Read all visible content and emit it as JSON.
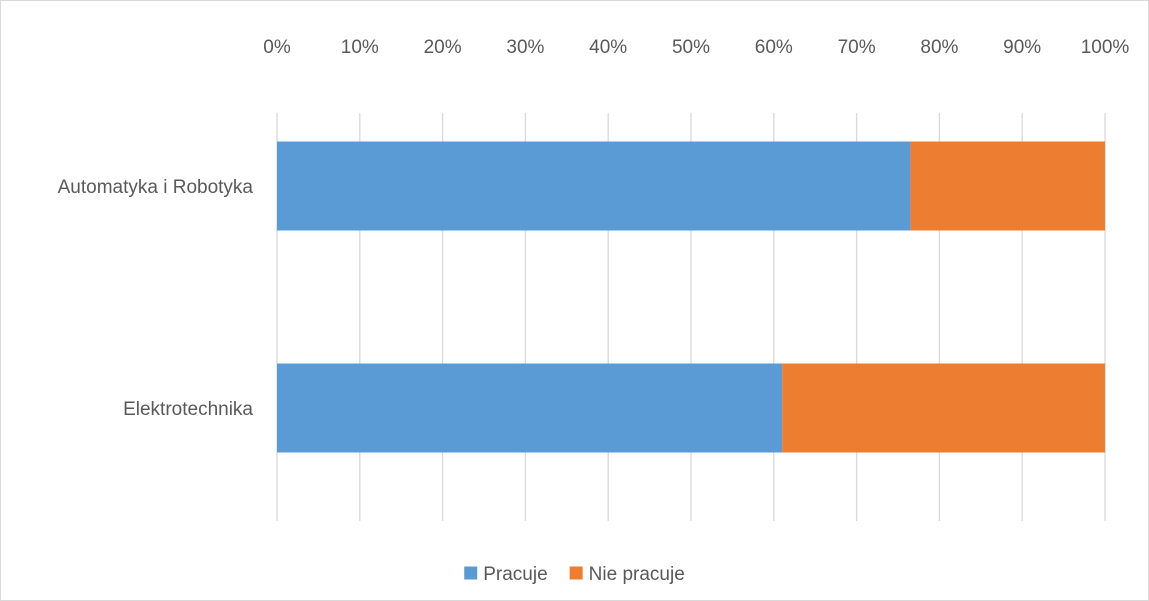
{
  "chart_data": {
    "type": "bar",
    "orientation": "horizontal",
    "stacked": "percent",
    "categories": [
      "Automatyka i Robotyka",
      "Elektrotechnika"
    ],
    "series": [
      {
        "name": "Pracuje",
        "values": [
          76.5,
          61
        ],
        "color": "#5b9bd5"
      },
      {
        "name": "Nie pracuje",
        "values": [
          23.5,
          39
        ],
        "color": "#ed7d31"
      }
    ],
    "xlim": [
      0,
      100
    ],
    "xticks": [
      "0%",
      "10%",
      "20%",
      "30%",
      "40%",
      "50%",
      "60%",
      "70%",
      "80%",
      "90%",
      "100%"
    ],
    "grid": true,
    "gridline_color": "#d9d9d9",
    "axis_position": "top",
    "legend_position": "bottom"
  }
}
